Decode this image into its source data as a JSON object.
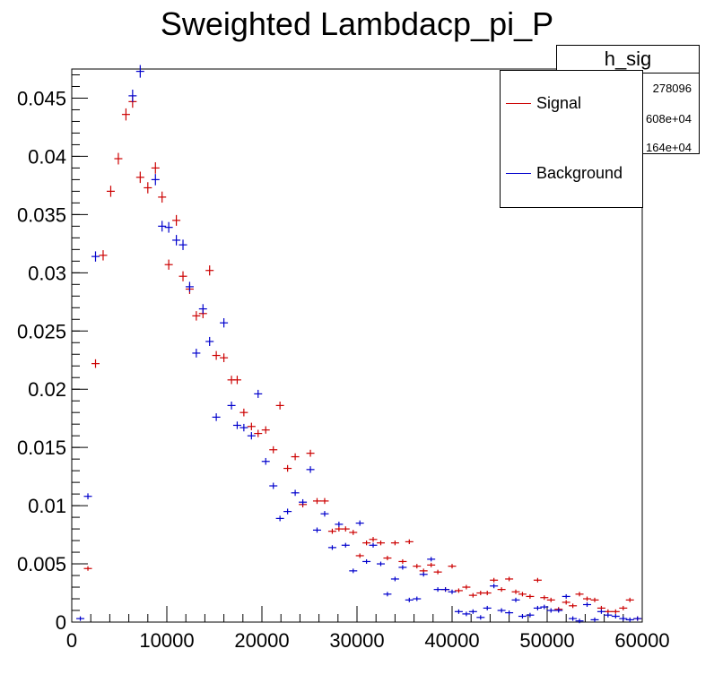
{
  "chart_data": {
    "type": "scatter",
    "title": "Sweighted Lambdacp_pi_P",
    "xlim": [
      0,
      60000
    ],
    "ylim": [
      0,
      0.0475
    ],
    "xticks": [
      0,
      10000,
      20000,
      30000,
      40000,
      50000,
      60000
    ],
    "xtick_labels": [
      "0",
      "10000",
      "20000",
      "30000",
      "40000",
      "50000",
      "60000"
    ],
    "yticks": [
      0,
      0.005,
      0.01,
      0.015,
      0.02,
      0.025,
      0.03,
      0.035,
      0.04,
      0.045
    ],
    "ytick_labels": [
      "0",
      "0.005",
      "0.01",
      "0.015",
      "0.02",
      "0.025",
      "0.03",
      "0.035",
      "0.04",
      "0.045"
    ],
    "legend_position": "top-right",
    "grid": false,
    "series": [
      {
        "name": "Signal",
        "color": "#cc0000",
        "points": [
          [
            1700,
            0.0046
          ],
          [
            2500,
            0.0222
          ],
          [
            3300,
            0.0315
          ],
          [
            4100,
            0.037
          ],
          [
            4900,
            0.0398
          ],
          [
            5700,
            0.0436
          ],
          [
            6400,
            0.0447
          ],
          [
            7200,
            0.0382
          ],
          [
            8000,
            0.0373
          ],
          [
            8800,
            0.039
          ],
          [
            9500,
            0.0365
          ],
          [
            10200,
            0.0307
          ],
          [
            11000,
            0.0345
          ],
          [
            11700,
            0.0297
          ],
          [
            12400,
            0.0286
          ],
          [
            13100,
            0.0263
          ],
          [
            13800,
            0.0265
          ],
          [
            14500,
            0.0302
          ],
          [
            15200,
            0.0229
          ],
          [
            16000,
            0.0227
          ],
          [
            16800,
            0.0208
          ],
          [
            17400,
            0.0208
          ],
          [
            18100,
            0.018
          ],
          [
            18900,
            0.0168
          ],
          [
            19600,
            0.0162
          ],
          [
            20400,
            0.0165
          ],
          [
            21200,
            0.0148
          ],
          [
            21900,
            0.0186
          ],
          [
            22700,
            0.0132
          ],
          [
            23500,
            0.0142
          ],
          [
            24300,
            0.0101
          ],
          [
            25100,
            0.0145
          ],
          [
            25800,
            0.0104
          ],
          [
            26600,
            0.0104
          ],
          [
            27400,
            0.0078
          ],
          [
            28100,
            0.008
          ],
          [
            28800,
            0.008
          ],
          [
            29600,
            0.0077
          ],
          [
            30300,
            0.0057
          ],
          [
            31000,
            0.0068
          ],
          [
            31700,
            0.0071
          ],
          [
            32500,
            0.0068
          ],
          [
            33200,
            0.0055
          ],
          [
            34000,
            0.0068
          ],
          [
            34800,
            0.0052
          ],
          [
            35500,
            0.0069
          ],
          [
            36300,
            0.0048
          ],
          [
            37000,
            0.0044
          ],
          [
            37800,
            0.0049
          ],
          [
            38500,
            0.0043
          ],
          [
            39300,
            0.0028
          ],
          [
            40000,
            0.0048
          ],
          [
            40700,
            0.0027
          ],
          [
            41500,
            0.003
          ],
          [
            42200,
            0.0023
          ],
          [
            43000,
            0.0025
          ],
          [
            43700,
            0.0025
          ],
          [
            44400,
            0.0036
          ],
          [
            45200,
            0.0028
          ],
          [
            46000,
            0.0037
          ],
          [
            46700,
            0.0026
          ],
          [
            47400,
            0.0024
          ],
          [
            48200,
            0.0022
          ],
          [
            49000,
            0.0036
          ],
          [
            49700,
            0.0021
          ],
          [
            50400,
            0.0019
          ],
          [
            51200,
            0.0011
          ],
          [
            52000,
            0.0017
          ],
          [
            52700,
            0.0014
          ],
          [
            53400,
            0.0024
          ],
          [
            54200,
            0.002
          ],
          [
            55000,
            0.0019
          ],
          [
            55700,
            0.0012
          ],
          [
            56400,
            0.0009
          ],
          [
            57200,
            0.0009
          ],
          [
            58000,
            0.0012
          ],
          [
            58700,
            0.0019
          ],
          [
            59500,
            0.0003
          ]
        ]
      },
      {
        "name": "Background",
        "color": "#0000cc",
        "points": [
          [
            900,
            0.0003
          ],
          [
            1700,
            0.0108
          ],
          [
            2500,
            0.0314
          ],
          [
            6400,
            0.0452
          ],
          [
            7200,
            0.0473
          ],
          [
            8800,
            0.038
          ],
          [
            9500,
            0.034
          ],
          [
            10200,
            0.0339
          ],
          [
            11000,
            0.0328
          ],
          [
            11700,
            0.0324
          ],
          [
            12400,
            0.0288
          ],
          [
            13100,
            0.0231
          ],
          [
            13800,
            0.0269
          ],
          [
            14500,
            0.0241
          ],
          [
            15200,
            0.0176
          ],
          [
            16000,
            0.0257
          ],
          [
            16800,
            0.0186
          ],
          [
            17400,
            0.0169
          ],
          [
            18100,
            0.0167
          ],
          [
            18900,
            0.016
          ],
          [
            19600,
            0.0196
          ],
          [
            20400,
            0.0138
          ],
          [
            21200,
            0.0117
          ],
          [
            21900,
            0.0089
          ],
          [
            22700,
            0.0095
          ],
          [
            23500,
            0.0111
          ],
          [
            24300,
            0.0103
          ],
          [
            25100,
            0.0131
          ],
          [
            25800,
            0.0079
          ],
          [
            26600,
            0.0093
          ],
          [
            27400,
            0.0064
          ],
          [
            28100,
            0.0084
          ],
          [
            28800,
            0.0066
          ],
          [
            29600,
            0.0044
          ],
          [
            30300,
            0.0085
          ],
          [
            31000,
            0.0052
          ],
          [
            31700,
            0.0066
          ],
          [
            32500,
            0.005
          ],
          [
            33200,
            0.0024
          ],
          [
            34000,
            0.0037
          ],
          [
            34800,
            0.0047
          ],
          [
            35500,
            0.0019
          ],
          [
            36300,
            0.002
          ],
          [
            37000,
            0.0041
          ],
          [
            37800,
            0.0054
          ],
          [
            38500,
            0.0028
          ],
          [
            39300,
            0.0028
          ],
          [
            40000,
            0.0026
          ],
          [
            40700,
            0.0009
          ],
          [
            41500,
            0.0007
          ],
          [
            42200,
            0.0009
          ],
          [
            43000,
            0.0004
          ],
          [
            43700,
            0.0012
          ],
          [
            44400,
            0.0031
          ],
          [
            45200,
            0.001
          ],
          [
            46000,
            0.0008
          ],
          [
            46700,
            0.0019
          ],
          [
            47400,
            0.0005
          ],
          [
            48200,
            0.0006
          ],
          [
            49000,
            0.0012
          ],
          [
            49700,
            0.0013
          ],
          [
            50400,
            0.001
          ],
          [
            51200,
            0.001
          ],
          [
            52000,
            0.0022
          ],
          [
            52700,
            0.0003
          ],
          [
            53400,
            0.0001
          ],
          [
            54200,
            0.0015
          ],
          [
            55000,
            0.0002
          ],
          [
            55700,
            0.0009
          ],
          [
            56400,
            0.0006
          ],
          [
            57200,
            0.0005
          ],
          [
            58000,
            0.0003
          ],
          [
            58700,
            0.0002
          ],
          [
            59500,
            0.0003
          ]
        ]
      }
    ]
  },
  "stats_box": {
    "name": "h_sig",
    "rows": [
      "278096",
      "608e+04",
      "164e+04"
    ]
  },
  "legend": {
    "items": [
      {
        "label": "Signal",
        "color": "#cc0000"
      },
      {
        "label": "Background",
        "color": "#0000cc"
      }
    ]
  }
}
